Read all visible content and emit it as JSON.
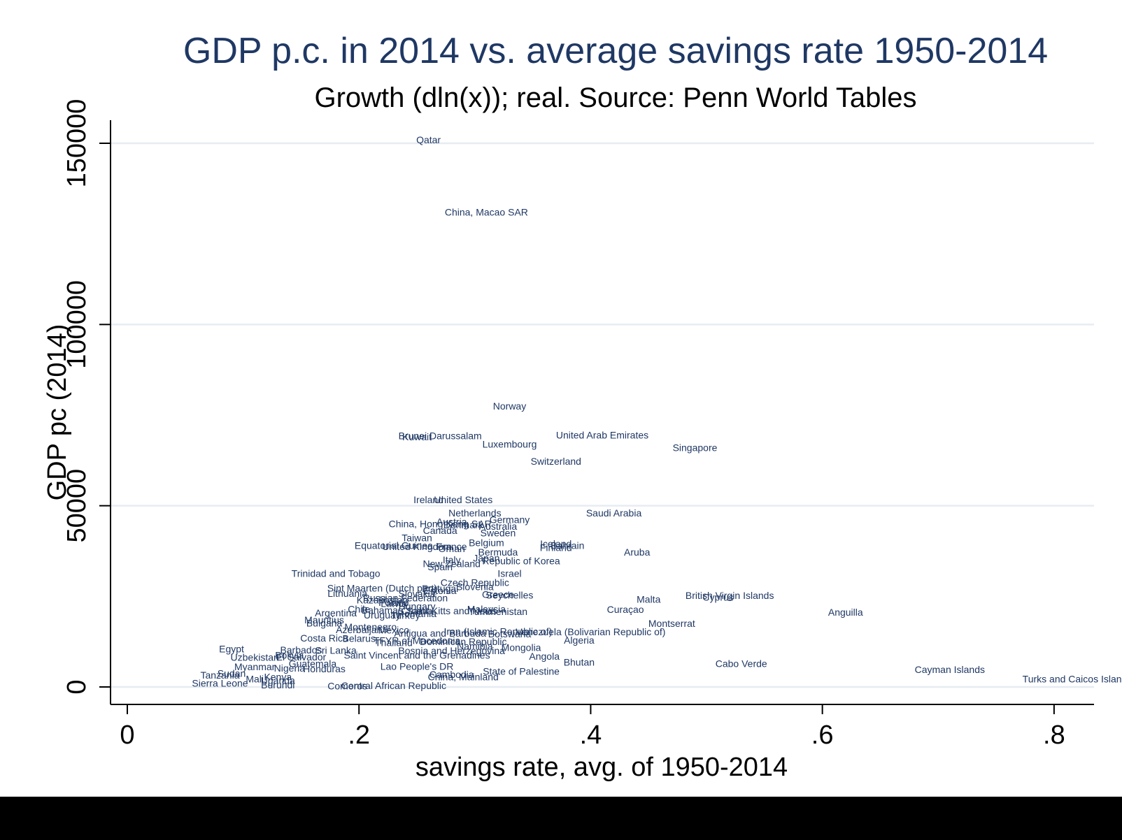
{
  "chart_data": {
    "type": "scatter",
    "title": "GDP p.c. in 2014 vs. average savings rate 1950-2014",
    "subtitle": "Growth (dln(x)); real. Source: Penn World Tables",
    "xlabel": "savings rate, avg. of 1950-2014",
    "ylabel": "GDP pc (2014)",
    "xlim": [
      0,
      0.82
    ],
    "ylim": [
      0,
      150000
    ],
    "xticks": [
      {
        "value": 0,
        "label": "0"
      },
      {
        "value": 0.2,
        "label": ".2"
      },
      {
        "value": 0.4,
        "label": ".4"
      },
      {
        "value": 0.6,
        "label": ".6"
      },
      {
        "value": 0.8,
        "label": ".8"
      }
    ],
    "yticks": [
      {
        "value": 0,
        "label": "0"
      },
      {
        "value": 50000,
        "label": "50000"
      },
      {
        "value": 100000,
        "label": "100000"
      },
      {
        "value": 150000,
        "label": "150000"
      }
    ],
    "grid": "horizontal",
    "marker": "country name labels",
    "colors": {
      "title": "#1f3864",
      "labels": "#1f3864",
      "grid": "#e6ecf2",
      "axis": "#000000",
      "band": "#000000"
    },
    "points": [
      {
        "label": "Qatar",
        "x": 0.26,
        "y": 151000
      },
      {
        "label": "China, Macao SAR",
        "x": 0.31,
        "y": 131000
      },
      {
        "label": "Norway",
        "x": 0.33,
        "y": 77500
      },
      {
        "label": "Brunei Darussalam",
        "x": 0.27,
        "y": 69300
      },
      {
        "label": "Kuwait",
        "x": 0.25,
        "y": 69000
      },
      {
        "label": "United Arab Emirates",
        "x": 0.41,
        "y": 69500
      },
      {
        "label": "Luxembourg",
        "x": 0.33,
        "y": 67000
      },
      {
        "label": "Singapore",
        "x": 0.49,
        "y": 66000
      },
      {
        "label": "Switzerland",
        "x": 0.37,
        "y": 62300
      },
      {
        "label": "Ireland",
        "x": 0.26,
        "y": 51700
      },
      {
        "label": "United States",
        "x": 0.29,
        "y": 51700
      },
      {
        "label": "Netherlands",
        "x": 0.3,
        "y": 48000
      },
      {
        "label": "Saudi Arabia",
        "x": 0.42,
        "y": 48000
      },
      {
        "label": "Germany",
        "x": 0.33,
        "y": 46200
      },
      {
        "label": "Austria",
        "x": 0.28,
        "y": 45600
      },
      {
        "label": "China, Hong Kong SAR",
        "x": 0.27,
        "y": 45000
      },
      {
        "label": "Denmark",
        "x": 0.29,
        "y": 44700
      },
      {
        "label": "Australia",
        "x": 0.32,
        "y": 44300
      },
      {
        "label": "Canada",
        "x": 0.27,
        "y": 43200
      },
      {
        "label": "Sweden",
        "x": 0.32,
        "y": 42500
      },
      {
        "label": "Taiwan",
        "x": 0.25,
        "y": 41200
      },
      {
        "label": "Belgium",
        "x": 0.31,
        "y": 39800
      },
      {
        "label": "Iceland",
        "x": 0.37,
        "y": 39500
      },
      {
        "label": "Equatorial Guinea",
        "x": 0.23,
        "y": 39000
      },
      {
        "label": "Bahrain",
        "x": 0.38,
        "y": 39000
      },
      {
        "label": "United Kingdom",
        "x": 0.25,
        "y": 38800
      },
      {
        "label": "France",
        "x": 0.28,
        "y": 38800
      },
      {
        "label": "Finland",
        "x": 0.37,
        "y": 38500
      },
      {
        "label": "Oman",
        "x": 0.28,
        "y": 38200
      },
      {
        "label": "Bermuda",
        "x": 0.32,
        "y": 37200
      },
      {
        "label": "Aruba",
        "x": 0.44,
        "y": 37200
      },
      {
        "label": "Japan",
        "x": 0.31,
        "y": 35600
      },
      {
        "label": "Italy",
        "x": 0.28,
        "y": 35100
      },
      {
        "label": "Republic of Korea",
        "x": 0.34,
        "y": 34800
      },
      {
        "label": "New Zealand",
        "x": 0.28,
        "y": 34000
      },
      {
        "label": "Spain",
        "x": 0.27,
        "y": 33200
      },
      {
        "label": "Trinidad and Tobago",
        "x": 0.18,
        "y": 31300
      },
      {
        "label": "Israel",
        "x": 0.33,
        "y": 31300
      },
      {
        "label": "Czech Republic",
        "x": 0.3,
        "y": 28800
      },
      {
        "label": "Slovenia",
        "x": 0.3,
        "y": 27700
      },
      {
        "label": "Sint Maarten (Dutch part)",
        "x": 0.22,
        "y": 27300
      },
      {
        "label": "Portugal",
        "x": 0.27,
        "y": 27200
      },
      {
        "label": "Estonia",
        "x": 0.27,
        "y": 26600
      },
      {
        "label": "Lithuania",
        "x": 0.19,
        "y": 25800
      },
      {
        "label": "Slovakia",
        "x": 0.25,
        "y": 25700
      },
      {
        "label": "Greece",
        "x": 0.32,
        "y": 25500
      },
      {
        "label": "Seychelles",
        "x": 0.33,
        "y": 25400
      },
      {
        "label": "Malta",
        "x": 0.45,
        "y": 24200
      },
      {
        "label": "British Virgin Islands",
        "x": 0.52,
        "y": 25300
      },
      {
        "label": "Cyprus",
        "x": 0.51,
        "y": 24800
      },
      {
        "label": "Russian Federation",
        "x": 0.24,
        "y": 24600
      },
      {
        "label": "Kazakhstan",
        "x": 0.22,
        "y": 24000
      },
      {
        "label": "Poland",
        "x": 0.23,
        "y": 23300
      },
      {
        "label": "Latvia",
        "x": 0.23,
        "y": 23000
      },
      {
        "label": "Hungary",
        "x": 0.25,
        "y": 22300
      },
      {
        "label": "Chile",
        "x": 0.2,
        "y": 21500
      },
      {
        "label": "Bahamas",
        "x": 0.22,
        "y": 21200
      },
      {
        "label": "Croatia",
        "x": 0.25,
        "y": 21000
      },
      {
        "label": "Saint Kitts and Nevis",
        "x": 0.28,
        "y": 21000
      },
      {
        "label": "Malaysia",
        "x": 0.31,
        "y": 21500
      },
      {
        "label": "Turkmenistan",
        "x": 0.32,
        "y": 20800
      },
      {
        "label": "Curaçao",
        "x": 0.43,
        "y": 21400
      },
      {
        "label": "Argentina",
        "x": 0.18,
        "y": 20400
      },
      {
        "label": "Uruguay",
        "x": 0.22,
        "y": 19900
      },
      {
        "label": "Romania",
        "x": 0.25,
        "y": 20200
      },
      {
        "label": "Turkey",
        "x": 0.24,
        "y": 19800
      },
      {
        "label": "Anguilla",
        "x": 0.62,
        "y": 20600
      },
      {
        "label": "Mauritius",
        "x": 0.17,
        "y": 18500
      },
      {
        "label": "Montserrat",
        "x": 0.47,
        "y": 17500
      },
      {
        "label": "Bulgaria",
        "x": 0.17,
        "y": 17600
      },
      {
        "label": "Montenegro",
        "x": 0.21,
        "y": 16600
      },
      {
        "label": "Azerbaijan",
        "x": 0.2,
        "y": 15800
      },
      {
        "label": "Mexico",
        "x": 0.23,
        "y": 15700
      },
      {
        "label": "Iran (Islamic Republic of)",
        "x": 0.32,
        "y": 15300
      },
      {
        "label": "Venezuela (Bolivarian Republic of)",
        "x": 0.4,
        "y": 15200
      },
      {
        "label": "Antigua and Barbuda",
        "x": 0.27,
        "y": 14800
      },
      {
        "label": "Botswana",
        "x": 0.33,
        "y": 14700
      },
      {
        "label": "Costa Rica",
        "x": 0.17,
        "y": 13500
      },
      {
        "label": "Belarus",
        "x": 0.2,
        "y": 13400
      },
      {
        "label": "Algeria",
        "x": 0.39,
        "y": 12900
      },
      {
        "label": "TFYR of Macedonia",
        "x": 0.25,
        "y": 12800
      },
      {
        "label": "Dominican Republic",
        "x": 0.29,
        "y": 12500
      },
      {
        "label": "Thailand",
        "x": 0.23,
        "y": 12200
      },
      {
        "label": "Namibia",
        "x": 0.3,
        "y": 11300
      },
      {
        "label": "Mongolia",
        "x": 0.34,
        "y": 10900
      },
      {
        "label": "Egypt",
        "x": 0.09,
        "y": 10500
      },
      {
        "label": "Barbados",
        "x": 0.15,
        "y": 10200
      },
      {
        "label": "Sri Lanka",
        "x": 0.18,
        "y": 10100
      },
      {
        "label": "Bosnia and Herzegovina",
        "x": 0.28,
        "y": 10000
      },
      {
        "label": "Saint Vincent and the Grenadines",
        "x": 0.25,
        "y": 8800
      },
      {
        "label": "Angola",
        "x": 0.36,
        "y": 8500
      },
      {
        "label": "Uzbekistan",
        "x": 0.11,
        "y": 8200
      },
      {
        "label": "Bolivia",
        "x": 0.14,
        "y": 8800
      },
      {
        "label": "El Salvador",
        "x": 0.15,
        "y": 8300
      },
      {
        "label": "Bhutan",
        "x": 0.39,
        "y": 6800
      },
      {
        "label": "Cabo Verde",
        "x": 0.53,
        "y": 6500
      },
      {
        "label": "Guatemala",
        "x": 0.16,
        "y": 6500
      },
      {
        "label": "Lao People's DR",
        "x": 0.25,
        "y": 5700
      },
      {
        "label": "Myanmar",
        "x": 0.11,
        "y": 5600
      },
      {
        "label": "Nigeria",
        "x": 0.14,
        "y": 5200
      },
      {
        "label": "Honduras",
        "x": 0.17,
        "y": 5000
      },
      {
        "label": "Cayman Islands",
        "x": 0.71,
        "y": 4800
      },
      {
        "label": "State of Palestine",
        "x": 0.34,
        "y": 4300
      },
      {
        "label": "Sudan",
        "x": 0.09,
        "y": 3800
      },
      {
        "label": "Tanzania",
        "x": 0.08,
        "y": 3300
      },
      {
        "label": "Cambodia",
        "x": 0.28,
        "y": 3500
      },
      {
        "label": "China, Mainland",
        "x": 0.29,
        "y": 2800
      },
      {
        "label": "Kenya",
        "x": 0.13,
        "y": 2800
      },
      {
        "label": "Mali",
        "x": 0.11,
        "y": 2200
      },
      {
        "label": "Uganda",
        "x": 0.13,
        "y": 1800
      },
      {
        "label": "Sierra Leone",
        "x": 0.08,
        "y": 1100
      },
      {
        "label": "Burundi",
        "x": 0.13,
        "y": 600
      },
      {
        "label": "Central African Republic",
        "x": 0.23,
        "y": 400
      },
      {
        "label": "Comoros",
        "x": 0.19,
        "y": 300
      },
      {
        "label": "Turks and Caicos Islands",
        "x": 0.82,
        "y": 2200
      }
    ]
  }
}
